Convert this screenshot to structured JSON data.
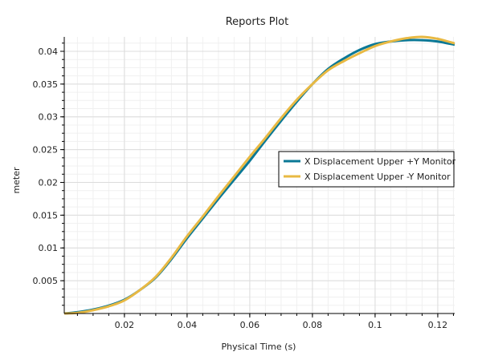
{
  "chart_data": {
    "type": "line",
    "title": "Reports Plot",
    "xlabel": "Physical Time (s)",
    "ylabel": "meter",
    "xlim": [
      0.0008,
      0.1254
    ],
    "ylim": [
      0,
      0.0422
    ],
    "xticks": [
      0.02,
      0.04,
      0.06,
      0.08,
      0.1,
      0.12
    ],
    "xtick_labels": [
      "0.02",
      "0.04",
      "0.06",
      "0.08",
      "0.1",
      "0.12"
    ],
    "yticks": [
      0.005,
      0.01,
      0.015,
      0.02,
      0.025,
      0.03,
      0.035,
      0.04
    ],
    "ytick_labels": [
      "0.005",
      "0.01",
      "0.015",
      "0.02",
      "0.025",
      "0.03",
      "0.035",
      "0.04"
    ],
    "grid": true,
    "legend_position": "center-right",
    "series": [
      {
        "name": "X Displacement Upper +Y Monitor",
        "color": "#0a7896",
        "x": [
          0.0008,
          0.005,
          0.01,
          0.015,
          0.02,
          0.025,
          0.03,
          0.035,
          0.04,
          0.045,
          0.05,
          0.055,
          0.06,
          0.065,
          0.07,
          0.075,
          0.08,
          0.085,
          0.09,
          0.095,
          0.1,
          0.105,
          0.11,
          0.115,
          0.12,
          0.1254
        ],
        "y": [
          0.0,
          0.0002,
          0.0006,
          0.0012,
          0.0021,
          0.0036,
          0.0055,
          0.0083,
          0.0115,
          0.0145,
          0.0175,
          0.0204,
          0.0233,
          0.0264,
          0.0294,
          0.0323,
          0.035,
          0.0373,
          0.0389,
          0.0402,
          0.0411,
          0.0415,
          0.0417,
          0.0417,
          0.0415,
          0.041
        ]
      },
      {
        "name": "X Displacement Upper -Y Monitor",
        "color": "#e8b943",
        "x": [
          0.0008,
          0.005,
          0.01,
          0.015,
          0.02,
          0.025,
          0.03,
          0.035,
          0.04,
          0.045,
          0.05,
          0.055,
          0.06,
          0.065,
          0.07,
          0.075,
          0.08,
          0.085,
          0.09,
          0.095,
          0.1,
          0.105,
          0.11,
          0.115,
          0.12,
          0.1254
        ],
        "y": [
          0.0,
          0.0001,
          0.0005,
          0.0011,
          0.002,
          0.0036,
          0.0056,
          0.0085,
          0.0118,
          0.0148,
          0.0179,
          0.0209,
          0.0239,
          0.0268,
          0.0298,
          0.0326,
          0.035,
          0.0371,
          0.0385,
          0.0397,
          0.0408,
          0.0415,
          0.042,
          0.0422,
          0.0419,
          0.0412
        ]
      }
    ]
  }
}
